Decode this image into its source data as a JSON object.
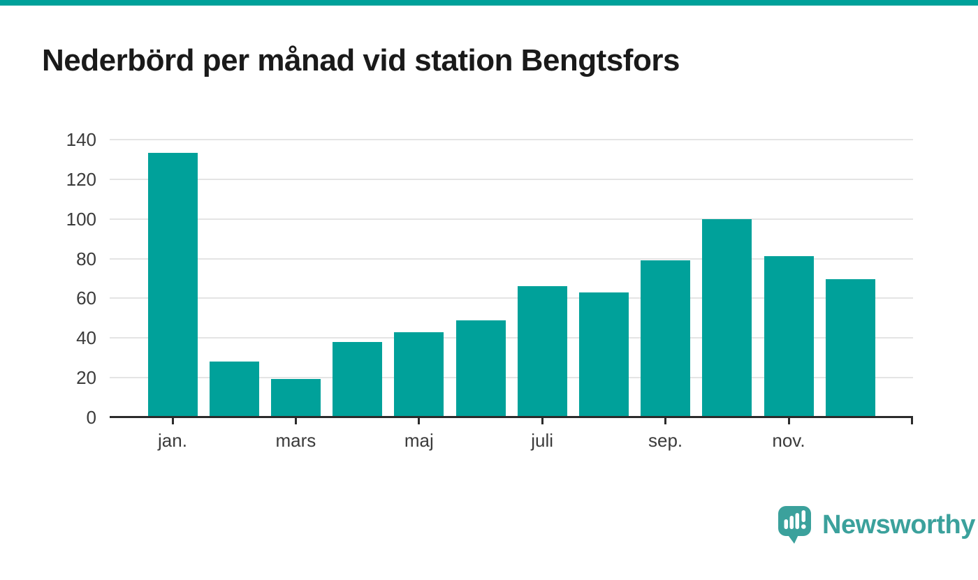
{
  "page": {
    "background_color": "#ffffff",
    "accent_color": "#00a19a"
  },
  "top_bar": {
    "color": "#00a19a"
  },
  "chart_data": {
    "type": "bar",
    "title": "Nederbörd per månad vid station Bengtsfors",
    "values": [
      132.7,
      27.4,
      18.7,
      37.4,
      42.3,
      48.2,
      65.3,
      62.3,
      78.3,
      99.2,
      80.5,
      68.9
    ],
    "bar_count": 12,
    "bar_color": "#00a19a",
    "ylim": [
      0,
      140
    ],
    "y_ticks": [
      0,
      20,
      40,
      60,
      80,
      100,
      120,
      140
    ],
    "x_ticks": [
      {
        "index": 0,
        "label": "jan."
      },
      {
        "index": 2,
        "label": "mars"
      },
      {
        "index": 4,
        "label": "maj"
      },
      {
        "index": 6,
        "label": "juli"
      },
      {
        "index": 8,
        "label": "sep."
      },
      {
        "index": 10,
        "label": "nov."
      }
    ],
    "grid": "horizontal",
    "legend": "none",
    "gridline_color": "#e4e4e4",
    "axis_line_color": "#2b2b2b",
    "tick_color": "#2b2b2b",
    "label_color": "#3b3b3b",
    "title_color": "#1a1a1a"
  },
  "branding": {
    "logo_text": "Newsworthy",
    "logo_color": "#3ba19c",
    "logo_icon": "speech-bubble-bar-chart-icon"
  }
}
